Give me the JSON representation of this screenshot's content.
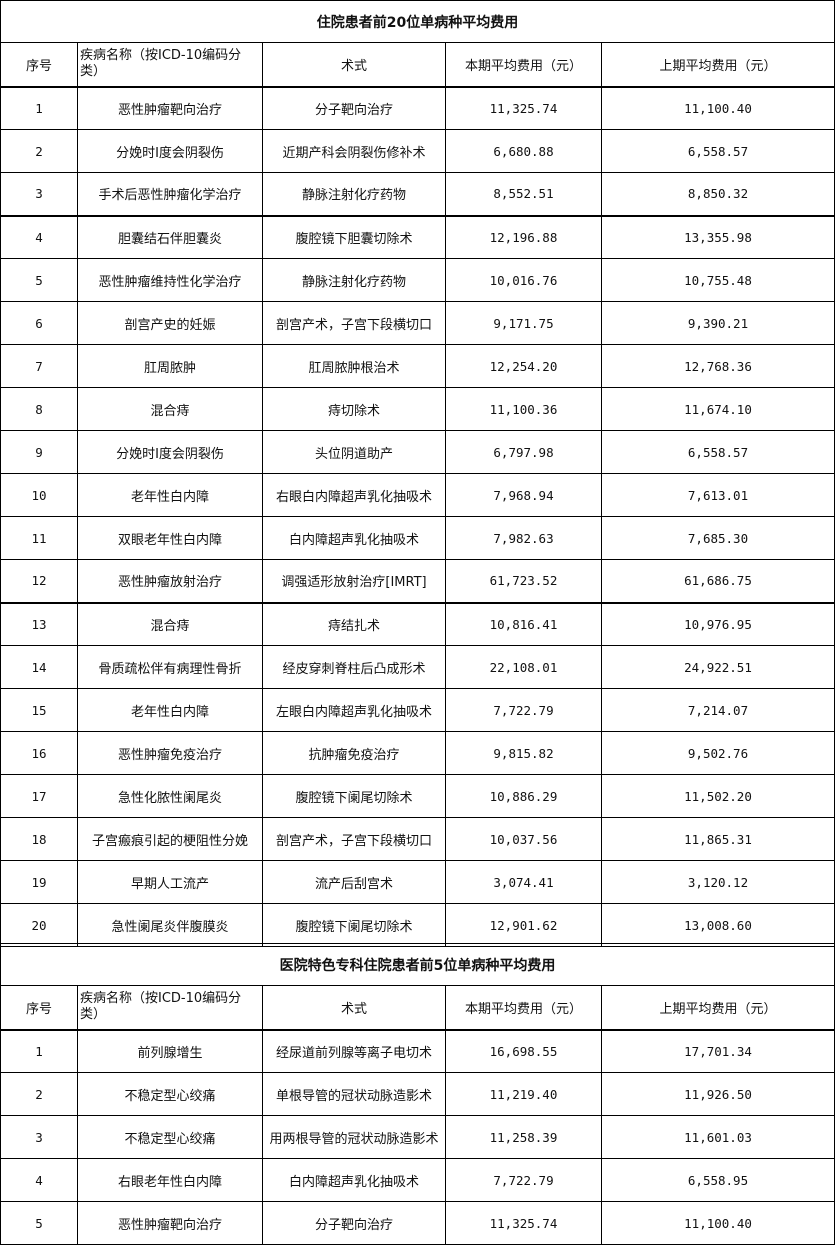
{
  "table1": {
    "title": "住院患者前20位单病种平均费用",
    "headers": [
      "序号",
      "疾病名称（按ICD-10编码分类）",
      "术式",
      "本期平均费用（元）",
      "上期平均费用（元）"
    ],
    "rows": [
      [
        "1",
        "恶性肿瘤靶向治疗",
        "分子靶向治疗",
        "11,325.74",
        "11,100.40"
      ],
      [
        "2",
        "分娩时Ⅰ度会阴裂伤",
        "近期产科会阴裂伤修补术",
        "6,680.88",
        "6,558.57"
      ],
      [
        "3",
        "手术后恶性肿瘤化学治疗",
        "静脉注射化疗药物",
        "8,552.51",
        "8,850.32"
      ],
      [
        "4",
        "胆囊结石伴胆囊炎",
        "腹腔镜下胆囊切除术",
        "12,196.88",
        "13,355.98"
      ],
      [
        "5",
        "恶性肿瘤维持性化学治疗",
        "静脉注射化疗药物",
        "10,016.76",
        "10,755.48"
      ],
      [
        "6",
        "剖宫产史的妊娠",
        "剖宫产术，子宫下段横切口",
        "9,171.75",
        "9,390.21"
      ],
      [
        "7",
        "肛周脓肿",
        "肛周脓肿根治术",
        "12,254.20",
        "12,768.36"
      ],
      [
        "8",
        "混合痔",
        "痔切除术",
        "11,100.36",
        "11,674.10"
      ],
      [
        "9",
        "分娩时Ⅰ度会阴裂伤",
        "头位阴道助产",
        "6,797.98",
        "6,558.57"
      ],
      [
        "10",
        "老年性白内障",
        "右眼白内障超声乳化抽吸术",
        "7,968.94",
        "7,613.01"
      ],
      [
        "11",
        "双眼老年性白内障",
        "白内障超声乳化抽吸术",
        "7,982.63",
        "7,685.30"
      ],
      [
        "12",
        "恶性肿瘤放射治疗",
        "调强适形放射治疗[IMRT]",
        "61,723.52",
        "61,686.75"
      ],
      [
        "13",
        "混合痔",
        "痔结扎术",
        "10,816.41",
        "10,976.95"
      ],
      [
        "14",
        "骨质疏松伴有病理性骨折",
        "经皮穿刺脊柱后凸成形术",
        "22,108.01",
        "24,922.51"
      ],
      [
        "15",
        "老年性白内障",
        "左眼白内障超声乳化抽吸术",
        "7,722.79",
        "7,214.07"
      ],
      [
        "16",
        "恶性肿瘤免疫治疗",
        "抗肿瘤免疫治疗",
        "9,815.82",
        "9,502.76"
      ],
      [
        "17",
        "急性化脓性阑尾炎",
        "腹腔镜下阑尾切除术",
        "10,886.29",
        "11,502.20"
      ],
      [
        "18",
        "子宫瘢痕引起的梗阻性分娩",
        "剖宫产术，子宫下段横切口",
        "10,037.56",
        "11,865.31"
      ],
      [
        "19",
        "早期人工流产",
        "流产后刮宫术",
        "3,074.41",
        "3,120.12"
      ],
      [
        "20",
        "急性阑尾炎伴腹膜炎",
        "腹腔镜下阑尾切除术",
        "12,901.62",
        "13,008.60"
      ]
    ]
  },
  "table2": {
    "title": "医院特色专科住院患者前5位单病种平均费用",
    "headers": [
      "序号",
      "疾病名称（按ICD-10编码分类）",
      "术式",
      "本期平均费用（元）",
      "上期平均费用（元）"
    ],
    "rows": [
      [
        "1",
        "前列腺增生",
        "经尿道前列腺等离子电切术",
        "16,698.55",
        "17,701.34"
      ],
      [
        "2",
        "不稳定型心绞痛",
        "单根导管的冠状动脉造影术",
        "11,219.40",
        "11,926.50"
      ],
      [
        "3",
        "不稳定型心绞痛",
        "用两根导管的冠状动脉造影术",
        "11,258.39",
        "11,601.03"
      ],
      [
        "4",
        "右眼老年性白内障",
        "白内障超声乳化抽吸术",
        "7,722.79",
        "6,558.95"
      ],
      [
        "5",
        "恶性肿瘤靶向治疗",
        "分子靶向治疗",
        "11,325.74",
        "11,100.40"
      ]
    ]
  }
}
